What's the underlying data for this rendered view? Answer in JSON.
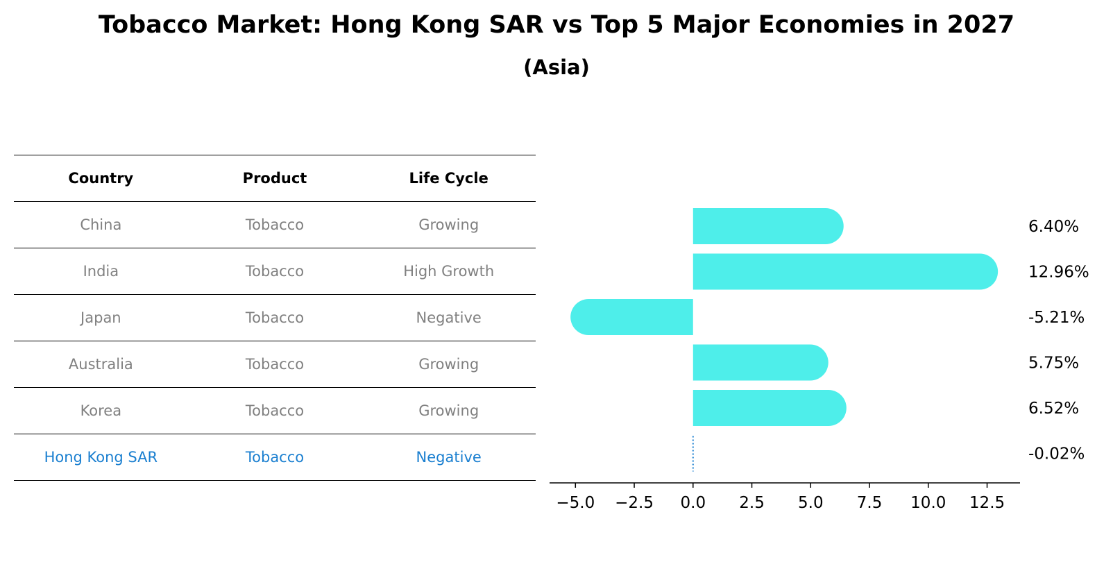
{
  "title": "Tobacco Market: Hong Kong SAR vs Top 5 Major Economies in 2027",
  "subtitle": "(Asia)",
  "table": {
    "headers": [
      "Country",
      "Product",
      "Life Cycle"
    ],
    "rows": [
      {
        "country": "China",
        "product": "Tobacco",
        "life_cycle": "Growing"
      },
      {
        "country": "India",
        "product": "Tobacco",
        "life_cycle": "High Growth"
      },
      {
        "country": "Japan",
        "product": "Tobacco",
        "life_cycle": "Negative"
      },
      {
        "country": "Australia",
        "product": "Tobacco",
        "life_cycle": "Growing"
      },
      {
        "country": "Korea",
        "product": "Tobacco",
        "life_cycle": "Growing"
      },
      {
        "country": "Hong Kong SAR",
        "product": "Tobacco",
        "life_cycle": "Negative"
      }
    ]
  },
  "colors": {
    "bar": "#4eeeea",
    "highlight_text": "#1a7fd0",
    "muted_text": "#808080",
    "reference_line": "#1a7fd0"
  },
  "chart_data": {
    "type": "bar",
    "orientation": "horizontal",
    "categories": [
      "China",
      "India",
      "Japan",
      "Australia",
      "Korea",
      "Hong Kong SAR"
    ],
    "values": [
      6.4,
      12.96,
      -5.21,
      5.75,
      6.52,
      -0.02
    ],
    "value_labels": [
      "6.40%",
      "12.96%",
      "-5.21%",
      "5.75%",
      "6.52%",
      "-0.02%"
    ],
    "x_ticks": [
      -5.0,
      -2.5,
      0.0,
      2.5,
      5.0,
      7.5,
      10.0,
      12.5
    ],
    "x_tick_labels": [
      "−5.0",
      "−2.5",
      "0.0",
      "2.5",
      "5.0",
      "7.5",
      "10.0",
      "12.5"
    ],
    "xlim": [
      -6.1,
      13.9
    ],
    "title": "",
    "xlabel": "",
    "ylabel": "",
    "grid": false,
    "legend": "none"
  }
}
